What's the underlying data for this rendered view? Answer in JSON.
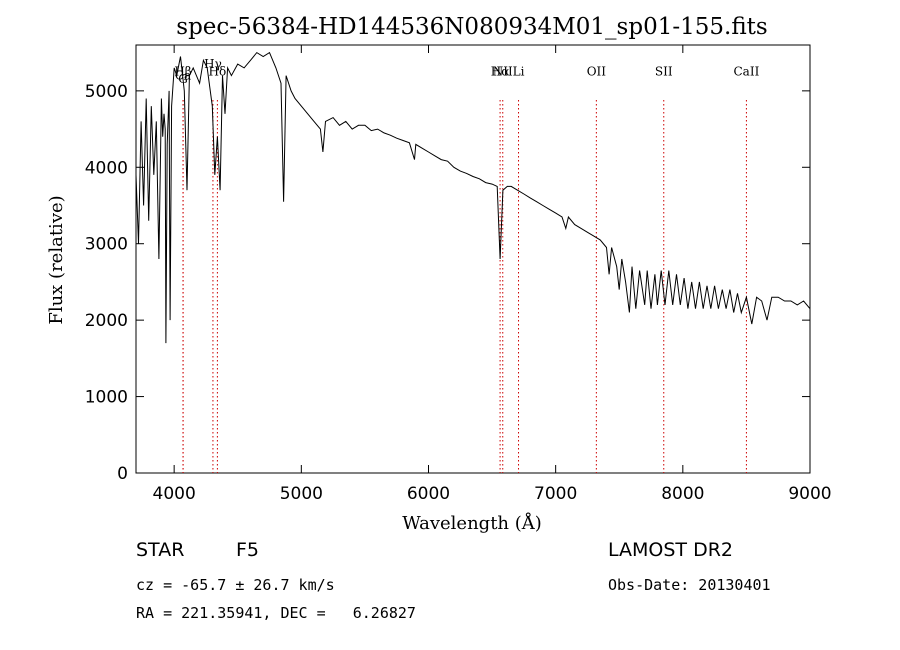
{
  "chart_data": {
    "type": "line",
    "title": "spec-56384-HD144536N080934M01_sp01-155.fits",
    "xlabel": "Wavelength (Å)",
    "ylabel": "Flux (relative)",
    "xlim": [
      3700,
      9000
    ],
    "ylim": [
      0,
      5600
    ],
    "x_ticks": [
      4000,
      5000,
      6000,
      7000,
      8000,
      9000
    ],
    "y_ticks": [
      0,
      1000,
      2000,
      3000,
      4000,
      5000
    ],
    "grid": false,
    "line_color": "#000000",
    "marker_color": "#cc0000",
    "line_markers": [
      {
        "label": "G",
        "x": 4070,
        "y": 5100
      },
      {
        "label": "Ca",
        "x": 4070,
        "y": 5150
      },
      {
        "label": "Hβ",
        "x": 4070,
        "y": 5200
      },
      {
        "label": "Hγ",
        "x": 4305,
        "y": 5300
      },
      {
        "label": "Hδ",
        "x": 4340,
        "y": 5200
      },
      {
        "label": "Hα",
        "x": 6563,
        "y": 5200
      },
      {
        "label": "Li",
        "x": 6708,
        "y": 5200
      },
      {
        "label": "NII",
        "x": 6584,
        "y": 5200
      },
      {
        "label": "OII",
        "x": 7320,
        "y": 5200
      },
      {
        "label": "SII",
        "x": 7850,
        "y": 5200
      },
      {
        "label": "CaII",
        "x": 8500,
        "y": 5200
      }
    ],
    "series": [
      {
        "points": [
          [
            3700,
            3900
          ],
          [
            3720,
            3000
          ],
          [
            3740,
            4600
          ],
          [
            3760,
            3500
          ],
          [
            3780,
            4900
          ],
          [
            3800,
            3300
          ],
          [
            3820,
            4800
          ],
          [
            3840,
            3900
          ],
          [
            3860,
            4600
          ],
          [
            3880,
            2800
          ],
          [
            3900,
            4900
          ],
          [
            3910,
            4400
          ],
          [
            3920,
            4700
          ],
          [
            3930,
            4500
          ],
          [
            3935,
            1700
          ],
          [
            3945,
            4300
          ],
          [
            3960,
            5000
          ],
          [
            3968,
            2000
          ],
          [
            3980,
            4800
          ],
          [
            4000,
            5300
          ],
          [
            4020,
            5200
          ],
          [
            4050,
            5450
          ],
          [
            4080,
            5000
          ],
          [
            4101,
            3700
          ],
          [
            4120,
            5200
          ],
          [
            4150,
            5300
          ],
          [
            4200,
            5100
          ],
          [
            4230,
            5400
          ],
          [
            4260,
            5300
          ],
          [
            4300,
            4800
          ],
          [
            4320,
            3900
          ],
          [
            4340,
            4400
          ],
          [
            4361,
            3700
          ],
          [
            4380,
            5200
          ],
          [
            4400,
            4700
          ],
          [
            4420,
            5300
          ],
          [
            4450,
            5200
          ],
          [
            4500,
            5350
          ],
          [
            4550,
            5300
          ],
          [
            4600,
            5400
          ],
          [
            4650,
            5500
          ],
          [
            4700,
            5450
          ],
          [
            4750,
            5500
          ],
          [
            4800,
            5300
          ],
          [
            4840,
            5100
          ],
          [
            4861,
            3550
          ],
          [
            4880,
            5200
          ],
          [
            4920,
            5000
          ],
          [
            4950,
            4900
          ],
          [
            5000,
            4800
          ],
          [
            5050,
            4700
          ],
          [
            5100,
            4600
          ],
          [
            5150,
            4500
          ],
          [
            5170,
            4200
          ],
          [
            5190,
            4600
          ],
          [
            5250,
            4650
          ],
          [
            5300,
            4550
          ],
          [
            5350,
            4600
          ],
          [
            5400,
            4500
          ],
          [
            5450,
            4550
          ],
          [
            5500,
            4550
          ],
          [
            5550,
            4480
          ],
          [
            5600,
            4500
          ],
          [
            5650,
            4450
          ],
          [
            5700,
            4420
          ],
          [
            5750,
            4380
          ],
          [
            5800,
            4350
          ],
          [
            5850,
            4320
          ],
          [
            5890,
            4100
          ],
          [
            5900,
            4300
          ],
          [
            5950,
            4250
          ],
          [
            6000,
            4200
          ],
          [
            6050,
            4150
          ],
          [
            6100,
            4100
          ],
          [
            6150,
            4080
          ],
          [
            6200,
            4000
          ],
          [
            6250,
            3950
          ],
          [
            6300,
            3920
          ],
          [
            6350,
            3880
          ],
          [
            6400,
            3850
          ],
          [
            6450,
            3800
          ],
          [
            6500,
            3780
          ],
          [
            6540,
            3750
          ],
          [
            6563,
            2800
          ],
          [
            6585,
            3700
          ],
          [
            6620,
            3750
          ],
          [
            6650,
            3750
          ],
          [
            6700,
            3700
          ],
          [
            6750,
            3650
          ],
          [
            6800,
            3600
          ],
          [
            6850,
            3550
          ],
          [
            6900,
            3500
          ],
          [
            6950,
            3450
          ],
          [
            7000,
            3400
          ],
          [
            7050,
            3350
          ],
          [
            7080,
            3200
          ],
          [
            7100,
            3350
          ],
          [
            7150,
            3250
          ],
          [
            7200,
            3200
          ],
          [
            7250,
            3150
          ],
          [
            7300,
            3100
          ],
          [
            7350,
            3050
          ],
          [
            7400,
            2950
          ],
          [
            7420,
            2600
          ],
          [
            7440,
            2950
          ],
          [
            7480,
            2700
          ],
          [
            7500,
            2400
          ],
          [
            7520,
            2800
          ],
          [
            7550,
            2500
          ],
          [
            7580,
            2100
          ],
          [
            7600,
            2700
          ],
          [
            7630,
            2150
          ],
          [
            7660,
            2650
          ],
          [
            7700,
            2200
          ],
          [
            7720,
            2650
          ],
          [
            7750,
            2150
          ],
          [
            7780,
            2600
          ],
          [
            7800,
            2200
          ],
          [
            7830,
            2650
          ],
          [
            7860,
            2200
          ],
          [
            7890,
            2650
          ],
          [
            7920,
            2200
          ],
          [
            7950,
            2600
          ],
          [
            7980,
            2200
          ],
          [
            8010,
            2550
          ],
          [
            8040,
            2150
          ],
          [
            8070,
            2500
          ],
          [
            8100,
            2150
          ],
          [
            8130,
            2500
          ],
          [
            8160,
            2150
          ],
          [
            8190,
            2450
          ],
          [
            8220,
            2150
          ],
          [
            8250,
            2450
          ],
          [
            8280,
            2150
          ],
          [
            8310,
            2400
          ],
          [
            8340,
            2150
          ],
          [
            8370,
            2400
          ],
          [
            8400,
            2100
          ],
          [
            8430,
            2350
          ],
          [
            8460,
            2100
          ],
          [
            8500,
            2300
          ],
          [
            8542,
            1950
          ],
          [
            8580,
            2300
          ],
          [
            8620,
            2250
          ],
          [
            8662,
            2000
          ],
          [
            8700,
            2300
          ],
          [
            8750,
            2300
          ],
          [
            8800,
            2250
          ],
          [
            8850,
            2250
          ],
          [
            8900,
            2200
          ],
          [
            8950,
            2250
          ],
          [
            9000,
            2150
          ]
        ]
      }
    ]
  },
  "info": {
    "object_label": "STAR",
    "subclass": "F5",
    "survey": "LAMOST DR2",
    "redshift_line": "cz = -65.7 ± 26.7 km/s",
    "obs_date_line": "Obs-Date: 20130401",
    "coords_line": "RA = 221.35941, DEC =   6.26827"
  }
}
